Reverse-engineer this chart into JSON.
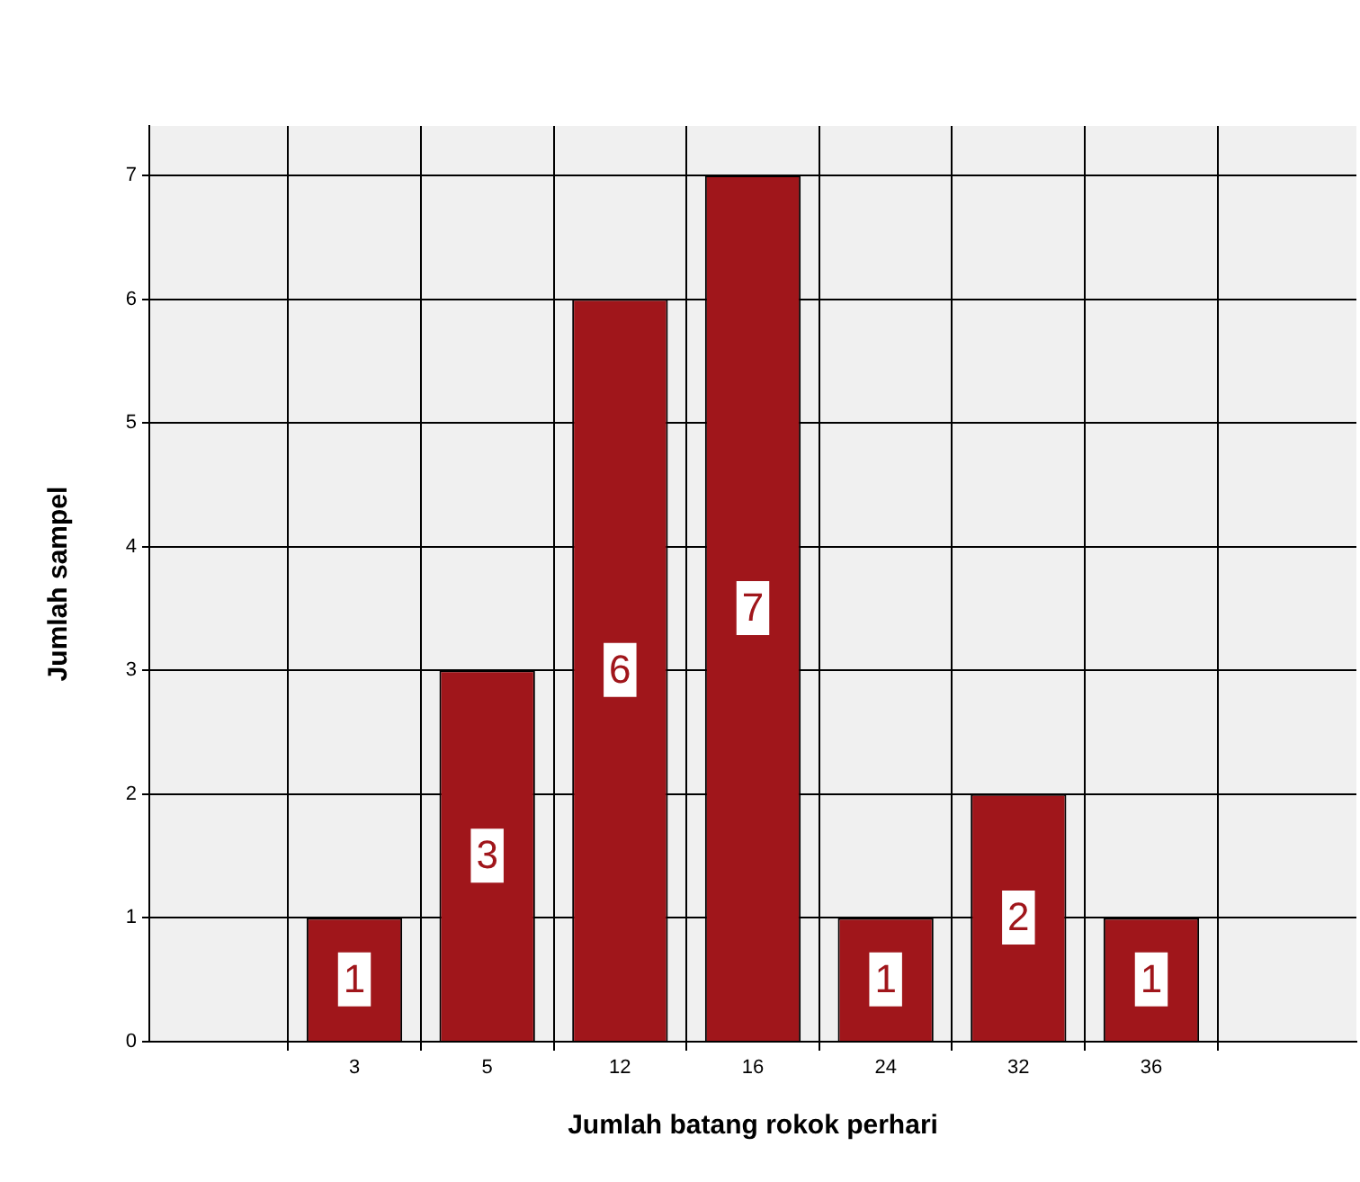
{
  "chart_data": {
    "type": "bar",
    "xlabel": "Jumlah batang rokok perhari",
    "ylabel": "Jumlah sampel",
    "categories": [
      "3",
      "5",
      "12",
      "16",
      "24",
      "32",
      "36"
    ],
    "values": [
      1,
      3,
      6,
      7,
      1,
      2,
      1
    ],
    "color": "#a0161b",
    "ylim": [
      0,
      7.4
    ],
    "yticks": [
      0,
      1,
      2,
      3,
      4,
      5,
      6,
      7
    ],
    "grid": true,
    "data_labels": true,
    "legend": false
  }
}
